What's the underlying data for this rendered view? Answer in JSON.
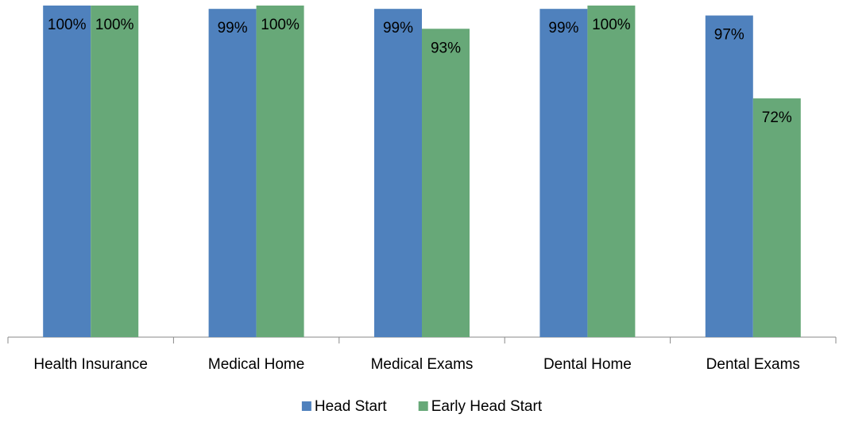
{
  "chart_data": {
    "type": "bar",
    "categories": [
      "Health Insurance",
      "Medical Home",
      "Medical Exams",
      "Dental Home",
      "Dental Exams"
    ],
    "series": [
      {
        "name": "Head Start",
        "color": "#4f81bd",
        "values": [
          100,
          99,
          99,
          99,
          97
        ],
        "value_labels": [
          "100%",
          "99%",
          "99%",
          "99%",
          "97%"
        ]
      },
      {
        "name": "Early Head Start",
        "color": "#67a878",
        "values": [
          100,
          100,
          93,
          100,
          72
        ],
        "value_labels": [
          "100%",
          "100%",
          "93%",
          "100%",
          "72%"
        ]
      }
    ],
    "ylim": [
      0,
      100
    ],
    "legend": "bottom"
  }
}
